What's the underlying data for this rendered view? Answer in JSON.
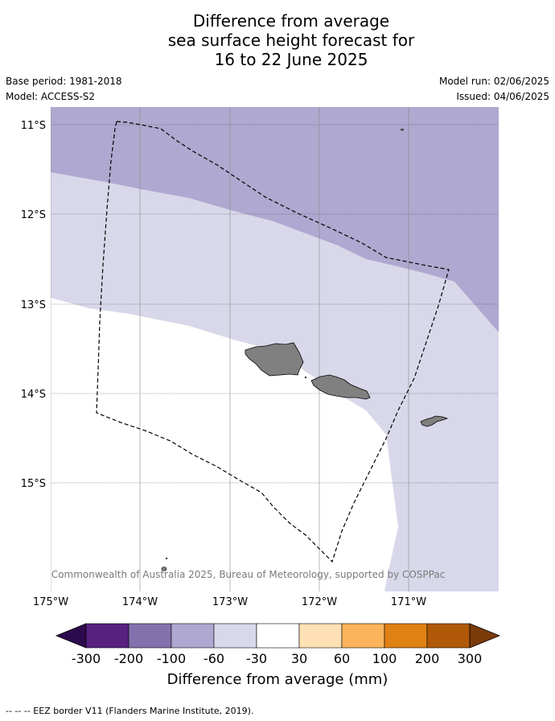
{
  "title": {
    "line1": "Difference from average",
    "line2": "sea surface height forecast for",
    "line3": "16 to 22 June 2025"
  },
  "meta": {
    "base_period": "Base period: 1981-2018",
    "model": "Model: ACCESS-S2",
    "model_run": "Model run: 02/06/2025",
    "issued": "Issued: 04/06/2025"
  },
  "map": {
    "lat_labels": [
      "11°S",
      "12°S",
      "13°S",
      "14°S",
      "15°S"
    ],
    "lon_labels": [
      "175°W",
      "174°W",
      "173°W",
      "172°W",
      "171°W"
    ],
    "copyright": "© Commonwealth of Australia 2025, Bureau of Meteorology, supported by COSPPac"
  },
  "colorbar": {
    "label": "Difference from average (mm)",
    "ticks": [
      "-300",
      "-200",
      "-100",
      "-60",
      "-30",
      "30",
      "60",
      "100",
      "200",
      "300"
    ],
    "colors": [
      "#2d0a4e",
      "#56217f",
      "#8371ad",
      "#afa8d0",
      "#d8d8ea",
      "#ffffff",
      "#fde0b4",
      "#fbb45c",
      "#e08113",
      "#b05908",
      "#7b3b09"
    ]
  },
  "footnote": "-- -- -- EEZ border V11 (Flanders Marine Institute, 2019)."
}
